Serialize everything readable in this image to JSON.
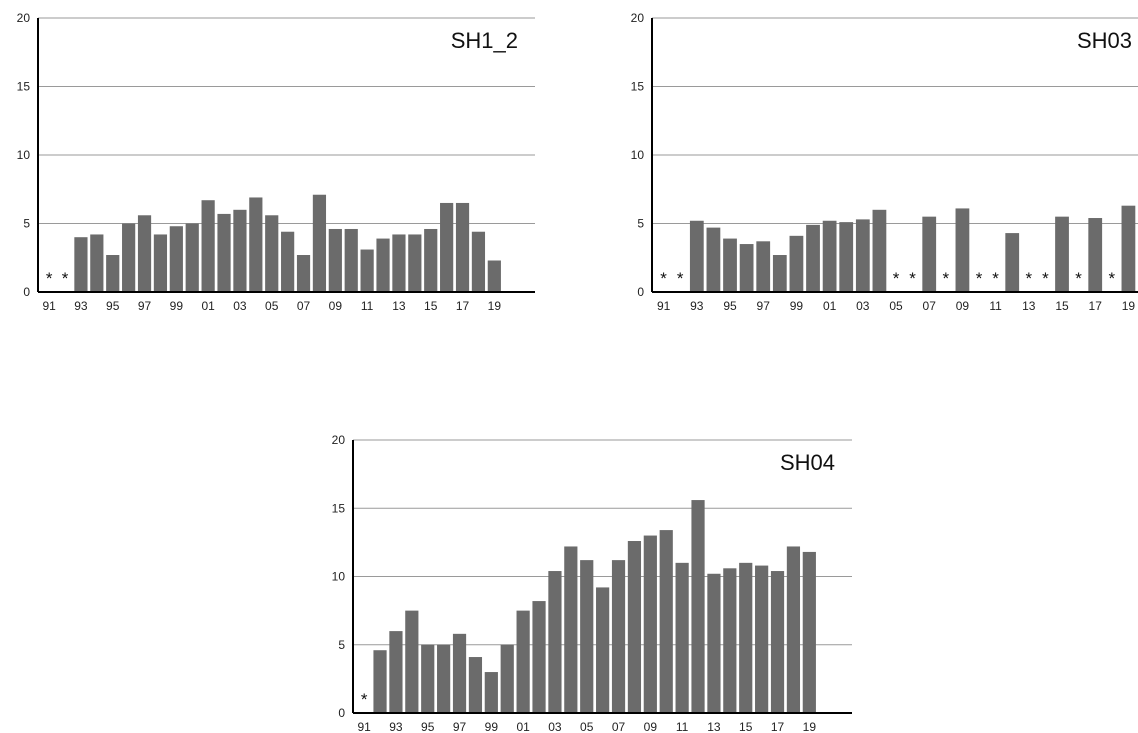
{
  "chart_data": [
    {
      "type": "bar",
      "title": "SH1_2",
      "categories": [
        "91",
        "92",
        "93",
        "94",
        "95",
        "96",
        "97",
        "98",
        "99",
        "00",
        "01",
        "02",
        "03",
        "04",
        "05",
        "06",
        "07",
        "08",
        "09",
        "10",
        "11",
        "12",
        "13",
        "14",
        "15",
        "16",
        "17",
        "18",
        "19"
      ],
      "x_tick_labels": [
        "91",
        "93",
        "95",
        "97",
        "99",
        "01",
        "03",
        "05",
        "07",
        "09",
        "11",
        "13",
        "15",
        "17",
        "19"
      ],
      "values": [
        null,
        null,
        4.0,
        4.2,
        2.7,
        5.0,
        5.6,
        4.2,
        4.8,
        5.0,
        6.7,
        5.7,
        6.0,
        6.9,
        5.6,
        4.4,
        2.7,
        7.1,
        4.6,
        4.6,
        3.1,
        3.9,
        4.2,
        4.2,
        4.6,
        6.5,
        6.5,
        4.4,
        2.3
      ],
      "missing_marker": "*",
      "yticks": [
        0,
        5,
        10,
        15,
        20
      ],
      "ylim": [
        0,
        20
      ],
      "grid": true
    },
    {
      "type": "bar",
      "title": "SH03",
      "categories": [
        "91",
        "92",
        "93",
        "94",
        "95",
        "96",
        "97",
        "98",
        "99",
        "00",
        "01",
        "02",
        "03",
        "04",
        "05",
        "06",
        "07",
        "08",
        "09",
        "10",
        "11",
        "12",
        "13",
        "14",
        "15",
        "16",
        "17",
        "18",
        "19"
      ],
      "x_tick_labels": [
        "91",
        "93",
        "95",
        "97",
        "99",
        "01",
        "03",
        "05",
        "07",
        "09",
        "11",
        "13",
        "15",
        "17",
        "19"
      ],
      "values": [
        null,
        null,
        5.2,
        4.7,
        3.9,
        3.5,
        3.7,
        2.7,
        4.1,
        4.9,
        5.2,
        5.1,
        5.3,
        6.0,
        null,
        null,
        5.5,
        null,
        6.1,
        null,
        null,
        4.3,
        null,
        null,
        5.5,
        null,
        5.4,
        null,
        6.3
      ],
      "missing_marker": "*",
      "yticks": [
        0,
        5,
        10,
        15,
        20
      ],
      "ylim": [
        0,
        20
      ],
      "grid": true
    },
    {
      "type": "bar",
      "title": "SH04",
      "categories": [
        "91",
        "92",
        "93",
        "94",
        "95",
        "96",
        "97",
        "98",
        "99",
        "00",
        "01",
        "02",
        "03",
        "04",
        "05",
        "06",
        "07",
        "08",
        "09",
        "10",
        "11",
        "12",
        "13",
        "14",
        "15",
        "16",
        "17",
        "18",
        "19"
      ],
      "x_tick_labels": [
        "91",
        "93",
        "95",
        "97",
        "99",
        "01",
        "03",
        "05",
        "07",
        "09",
        "11",
        "13",
        "15",
        "17",
        "19"
      ],
      "values": [
        null,
        4.6,
        6.0,
        7.5,
        5.0,
        5.0,
        5.8,
        4.1,
        3.0,
        5.0,
        7.5,
        8.2,
        10.4,
        12.2,
        11.2,
        9.2,
        11.2,
        12.6,
        13.0,
        13.4,
        11.0,
        15.6,
        10.2,
        10.6,
        11.0,
        10.8,
        10.4,
        12.2,
        11.8
      ],
      "missing_marker": "*",
      "yticks": [
        0,
        5,
        10,
        15,
        20
      ],
      "ylim": [
        0,
        20
      ],
      "grid": true
    }
  ]
}
